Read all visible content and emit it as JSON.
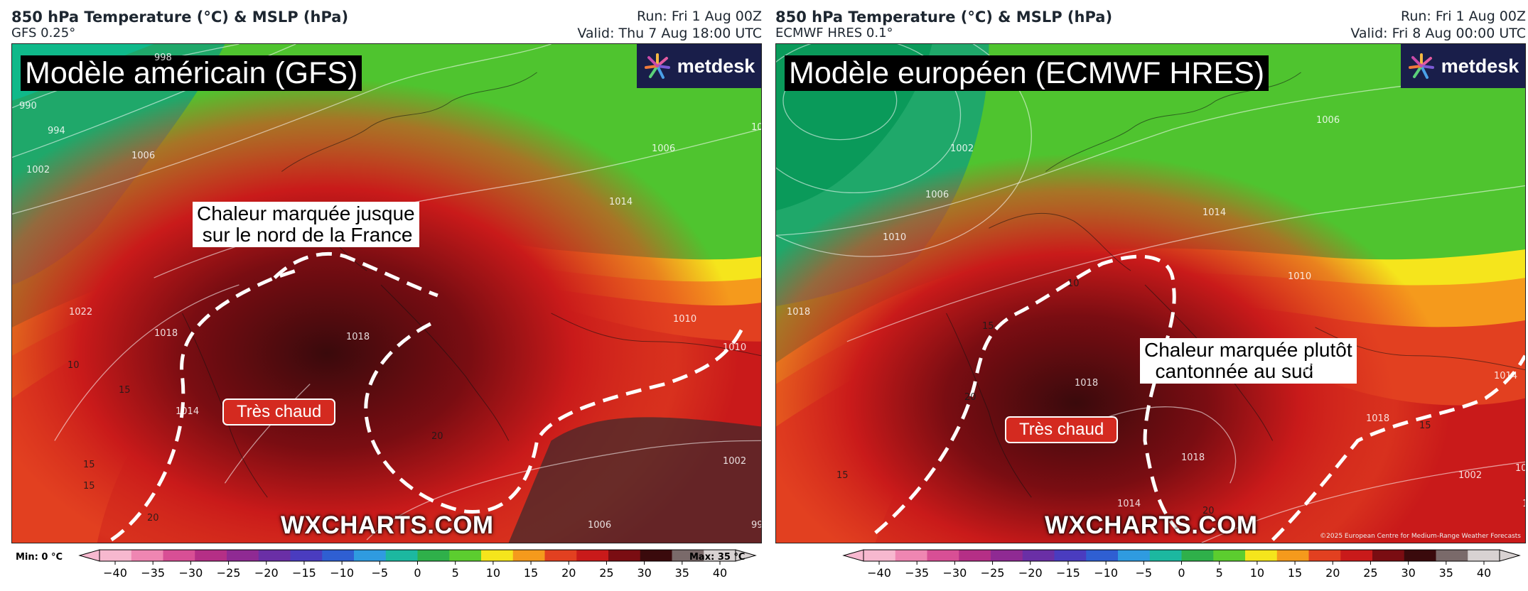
{
  "panels": [
    {
      "title": "850 hPa Temperature (°C) & MSLP (hPa)",
      "subtitle": "GFS 0.25°",
      "run": "Run: Fri 1 Aug 00Z",
      "valid": "Valid: Thu 7 Aug 18:00 UTC",
      "model_label": "Modèle américain (GFS)",
      "annotation": "Chaleur marquée jusque\n sur le nord de la France",
      "badge": "Très chaud",
      "watermark": "WXCHARTS.COM",
      "logo": "metdesk",
      "min_label": "Min: 0 °C",
      "max_label": "Max: 35 °C",
      "copyright": "",
      "isobar_labels": [
        "998",
        "990",
        "994",
        "1006",
        "1002",
        "1014",
        "1006",
        "1022",
        "1018",
        "1018",
        "1014",
        "1010",
        "1006",
        "1002",
        "998",
        "1006",
        "1010"
      ],
      "temp_labels": [
        "10",
        "15",
        "15",
        "15",
        "20",
        "20"
      ]
    },
    {
      "title": "850 hPa Temperature (°C) & MSLP (hPa)",
      "subtitle": "ECMWF HRES 0.1°",
      "run": "Run: Fri 1 Aug 00Z",
      "valid": "Valid: Fri 8 Aug 00:00 UTC",
      "model_label": "Modèle européen (ECMWF HRES)",
      "annotation": "Chaleur marquée plutôt\n  cantonnée au sud",
      "badge": "Très chaud",
      "watermark": "WXCHARTS.COM",
      "logo": "metdesk",
      "copyright": "©2025 European Centre for Medium-Range Weather Forecasts",
      "isobar_labels": [
        "1002",
        "1006",
        "1010",
        "1018",
        "1014",
        "1006",
        "1010",
        "1014",
        "1018",
        "1018",
        "1014",
        "1018",
        "1014",
        "1010",
        "1006",
        "1002"
      ],
      "temp_labels": [
        "15",
        "10",
        "15",
        "20",
        "15",
        "20"
      ]
    }
  ],
  "colorbar": {
    "ticks": [
      "−40",
      "−35",
      "−30",
      "−25",
      "−20",
      "−15",
      "−10",
      "−5",
      "0",
      "5",
      "10",
      "15",
      "20",
      "25",
      "30",
      "35",
      "40"
    ],
    "range": [
      -40,
      40
    ],
    "colors": [
      "#f7b8cf",
      "#ef86b2",
      "#d84f95",
      "#b52f86",
      "#8f2a93",
      "#6a2fa6",
      "#4a3cbf",
      "#2f5fd2",
      "#2f9be0",
      "#1cb8a0",
      "#2fb04a",
      "#5ccd2f",
      "#f5e51c",
      "#f59a1c",
      "#e24020",
      "#c91a1a",
      "#7a0d12",
      "#3a0a0c",
      "#7a6a6a",
      "#d8d2d2"
    ]
  }
}
